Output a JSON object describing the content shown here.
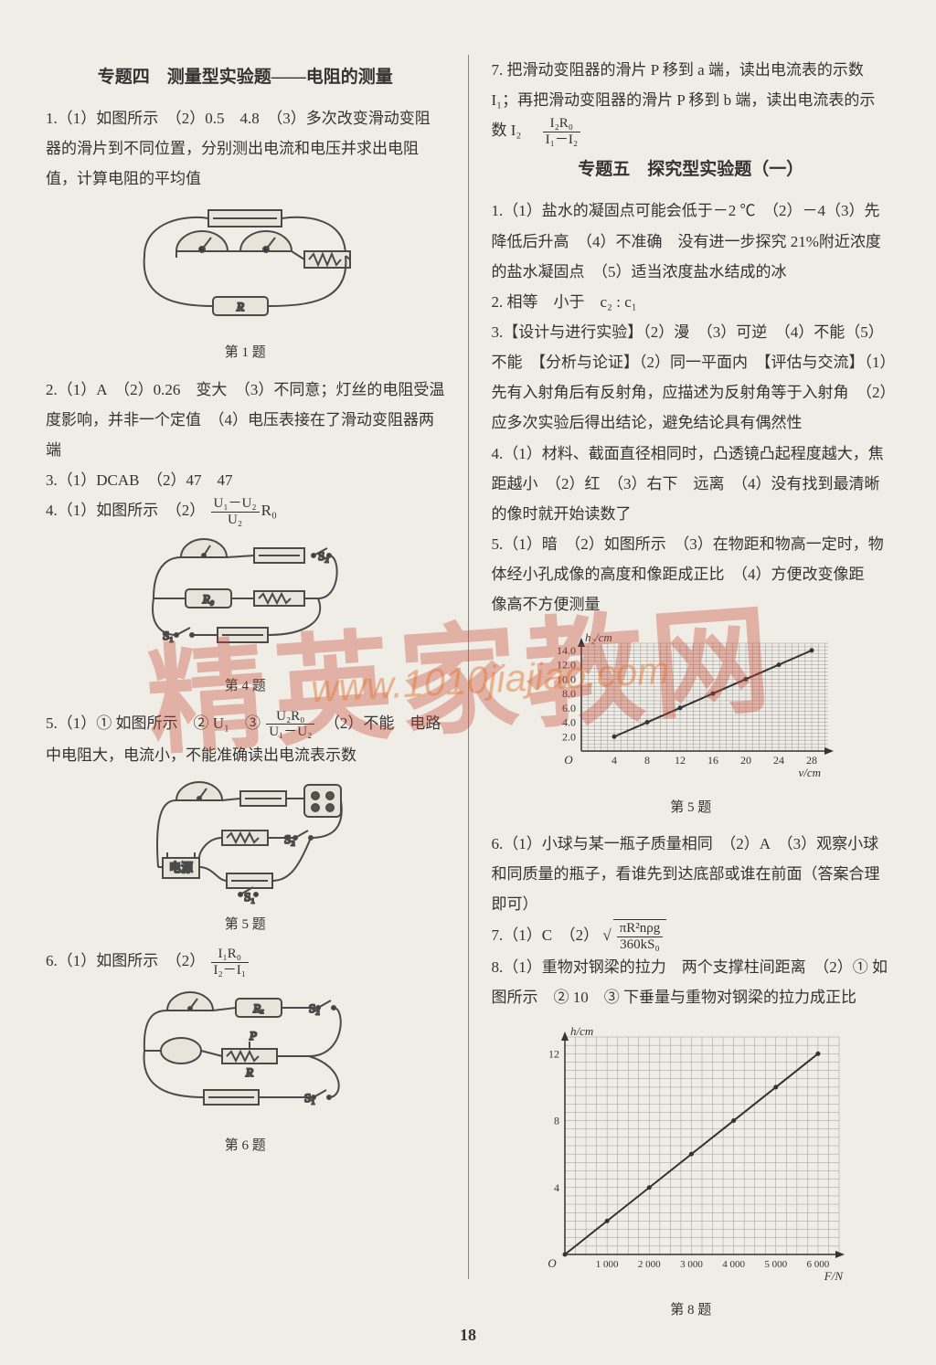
{
  "page_number": "18",
  "watermark_main": "精英家教网",
  "watermark_url": "www.1010jiajiao.com",
  "left": {
    "title": "专题四　测量型实验题——电阻的测量",
    "q1": "1.（1）如图所示　（2）0.5　4.8　（3）多次改变滑动变阻器的滑片到不同位置，分别测出电流和电压并求出电阻值，计算电阻的平均值",
    "fig1_label": "第 1 题",
    "q2": "2.（1）A　（2）0.26　变大　（3）不同意；灯丝的电阻受温度影响，并非一个定值　（4）电压表接在了滑动变阻器两端",
    "q3": "3.（1）DCAB　（2）47　47",
    "q4_a": "4.（1）如图所示　（2）",
    "q4_frac_num": "U₁－U₂",
    "q4_frac_den": "U₂",
    "q4_b": "R₀",
    "fig4_label": "第 4 题",
    "q5_a": "5.（1）① 如图所示　② U₁　③ ",
    "q5_frac_num": "U₂R₀",
    "q5_frac_den": "U₁－U₂",
    "q5_b": "　（2）不能　电路中电阻大，电流小，不能准确读出电流表示数",
    "fig5_label": "第 5 题",
    "q6_a": "6.（1）如图所示　（2）",
    "q6_frac_num": "I₁R₀",
    "q6_frac_den": "I₂－I₁",
    "fig6_label": "第 6 题"
  },
  "right": {
    "q7_a": "7. 把滑动变阻器的滑片 P 移到 a 端，读出电流表的示数 I₁；再把滑动变阻器的滑片 P 移到 b 端，读出电流表的示数 I₂　",
    "q7_frac_num": "I₂R₀",
    "q7_frac_den": "I₁－I₂",
    "title5": "专题五　探究型实验题（一）",
    "q1": "1.（1）盐水的凝固点可能会低于－2 ℃　（2）－4（3）先降低后升高　（4）不准确　没有进一步探究 21%附近浓度的盐水凝固点　（5）适当浓度盐水结成的冰",
    "q2": "2. 相等　小于　c₂ : c₁",
    "q3": "3.【设计与进行实验】（2）漫　（3）可逆　（4）不能（5）不能　【分析与论证】（2）同一平面内　【评估与交流】（1）先有入射角后有反射角，应描述为反射角等于入射角　（2）应多次实验后得出结论，避免结论具有偶然性",
    "q4": "4.（1）材料、截面直径相同时，凸透镜凸起程度越大，焦距越小　（2）红　（3）右下　远离　（4）没有找到最清晰的像时就开始读数了",
    "q5": "5.（1）暗　（2）如图所示　（3）在物距和物高一定时，物体经小孔成像的高度和像距成正比　（4）方便改变像距　像高不方便测量",
    "chart5": {
      "type": "line",
      "ylabel": "h₂/cm",
      "xlabel": "v/cm",
      "xlim": [
        0,
        30
      ],
      "ylim": [
        0,
        15
      ],
      "xticks": [
        4.0,
        8.0,
        12.0,
        16.0,
        20.0,
        24.0,
        28.0
      ],
      "yticks": [
        2.0,
        4.0,
        6.0,
        8.0,
        10.0,
        12.0,
        14.0
      ],
      "points": [
        [
          4,
          2
        ],
        [
          8,
          4
        ],
        [
          12,
          6
        ],
        [
          16,
          8
        ],
        [
          20,
          10
        ],
        [
          24,
          12
        ],
        [
          28,
          14
        ]
      ],
      "line_color": "#333333",
      "grid_color": "#999999",
      "background": "#f0ede6",
      "caption": "第 5 题"
    },
    "q6": "6.（1）小球与某一瓶子质量相同　（2）A　（3）观察小球和同质量的瓶子，看谁先到达底部或谁在前面（答案合理即可）",
    "q7b_a": "7.（1）C　（2）",
    "q7b_sqrt_num": "πR²nρg",
    "q7b_sqrt_den": "360kS₀",
    "q8": "8.（1）重物对钢梁的拉力　两个支撑柱间距离　（2）① 如图所示　② 10　③ 下垂量与重物对钢梁的拉力成正比",
    "chart8": {
      "type": "line",
      "ylabel": "h/cm",
      "xlabel": "F/N",
      "xlim": [
        0,
        6500
      ],
      "ylim": [
        0,
        13
      ],
      "xticks": [
        1000,
        2000,
        3000,
        4000,
        5000,
        6000
      ],
      "yticks": [
        4,
        8,
        12
      ],
      "points": [
        [
          0,
          0
        ],
        [
          1000,
          2
        ],
        [
          2000,
          4
        ],
        [
          3000,
          6
        ],
        [
          4000,
          8
        ],
        [
          5000,
          10
        ],
        [
          6000,
          12
        ]
      ],
      "line_color": "#333333",
      "grid_color": "#999999",
      "background": "#f0ede6",
      "caption": "第 8 题"
    }
  },
  "circuit_stroke": "#4a4a4a",
  "circuit_fill": "#e8e4da"
}
